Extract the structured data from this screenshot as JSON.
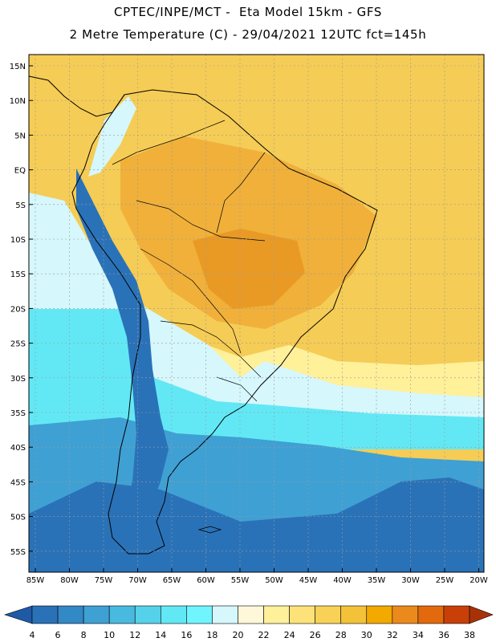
{
  "header": {
    "title_line1": "CPTEC/INPE/MCT -  Eta Model 15km - GFS",
    "title_line2": "2 Metre Temperature (C) - 29/04/2021 12UTC fct=145h"
  },
  "axes": {
    "lat_labels": [
      "15N",
      "10N",
      "5N",
      "EQ",
      "5S",
      "10S",
      "15S",
      "20S",
      "25S",
      "30S",
      "35S",
      "40S",
      "45S",
      "50S",
      "55S"
    ],
    "lon_labels": [
      "85W",
      "80W",
      "75W",
      "70W",
      "65W",
      "60W",
      "55W",
      "50W",
      "45W",
      "40W",
      "35W",
      "30W",
      "25W",
      "20W"
    ]
  },
  "colorbar": {
    "labels": [
      "4",
      "6",
      "8",
      "10",
      "12",
      "14",
      "16",
      "18",
      "20",
      "22",
      "24",
      "26",
      "28",
      "30",
      "32",
      "34",
      "36",
      "38"
    ],
    "colors": [
      "#1f5aa6",
      "#2a72b8",
      "#3388c6",
      "#3fa0d4",
      "#4ab9e0",
      "#56d1ea",
      "#62e8f5",
      "#70f5ff",
      "#d6f7fc",
      "#fff7da",
      "#fff09a",
      "#fde27a",
      "#f8d257",
      "#f3c238",
      "#f2a900",
      "#eb8a1c",
      "#e26a0c",
      "#c84008",
      "#a83205"
    ]
  },
  "map": {
    "zones": [
      {
        "name": "north-warm",
        "color": "#f5cc55"
      },
      {
        "name": "amazon-hot",
        "color": "#f0b03a"
      },
      {
        "name": "central-hot",
        "color": "#e99a25"
      },
      {
        "name": "south-mild",
        "color": "#fff09a"
      },
      {
        "name": "subtropical-cool",
        "color": "#d6f7fc"
      },
      {
        "name": "midlat-cyan",
        "color": "#62e8f5"
      },
      {
        "name": "southern-cold",
        "color": "#3fa0d4"
      },
      {
        "name": "deep-cold",
        "color": "#2a72b8"
      },
      {
        "name": "andes-cold",
        "color": "#2a72b8"
      }
    ]
  }
}
